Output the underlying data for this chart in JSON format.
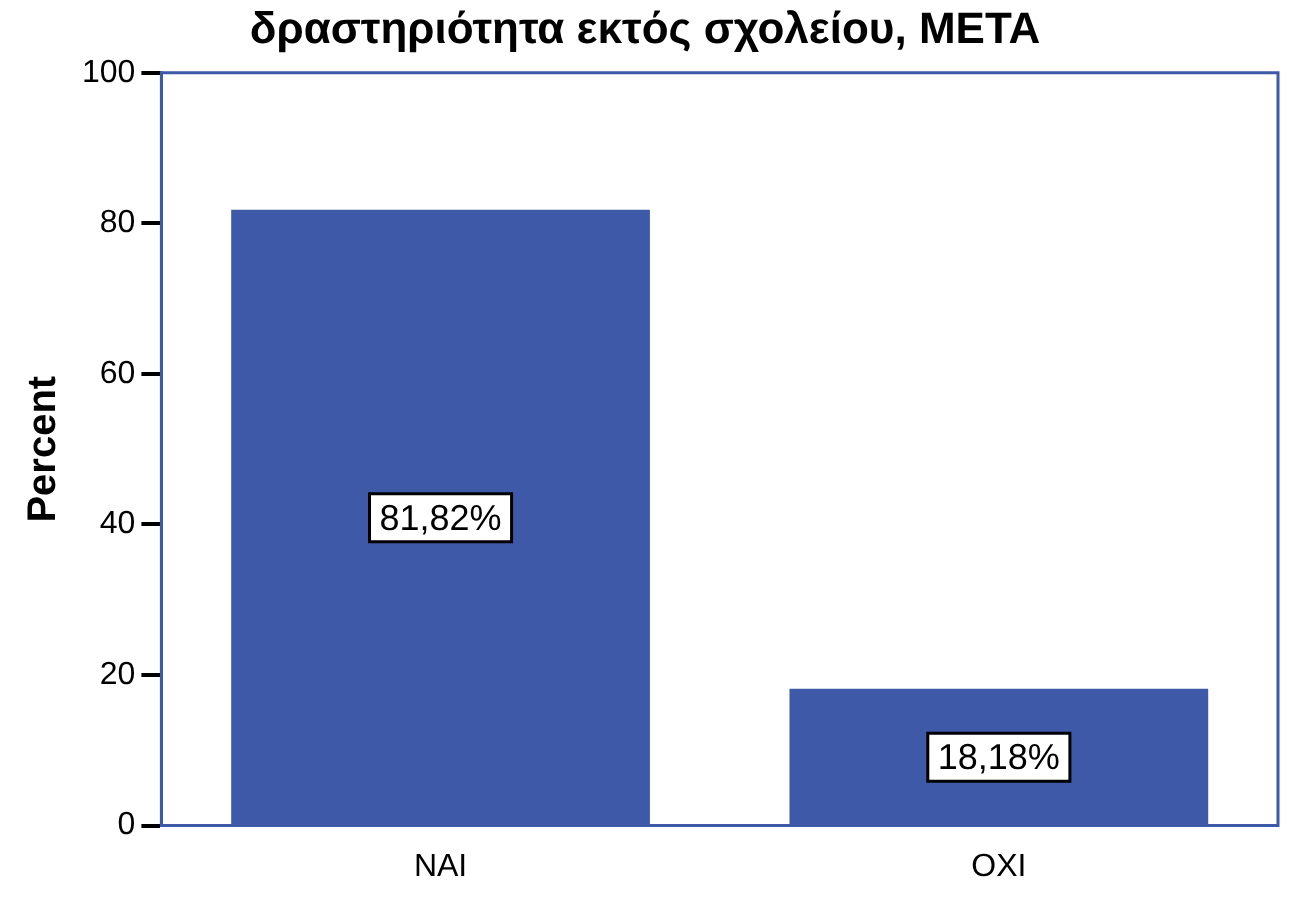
{
  "chart_data": {
    "type": "bar",
    "title": "δραστηριότητα εκτός σχολείου, ΜΕΤΑ",
    "ylabel": "Percent",
    "categories": [
      "ΝΑΙ",
      "ΟΧΙ"
    ],
    "values": [
      81.82,
      18.18
    ],
    "value_labels": [
      "81,82%",
      "18,18%"
    ],
    "color": "#3f59a9",
    "ylim": [
      0,
      100
    ],
    "yticks": [
      0,
      20,
      40,
      60,
      80,
      100
    ],
    "grid": false,
    "legend": false
  }
}
